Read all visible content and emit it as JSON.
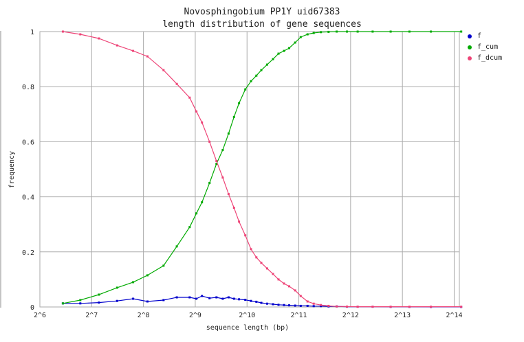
{
  "chart_data": {
    "type": "line",
    "title": "Novosphingobium PP1Y uid67383",
    "subtitle": "length distribution of gene sequences",
    "xlabel": "sequence length (bp)",
    "ylabel": "frequency",
    "x_scale": "log2",
    "xlim_exponent": [
      6,
      14.1
    ],
    "xticks": [
      "2^6",
      "2^7",
      "2^8",
      "2^9",
      "2^10",
      "2^11",
      "2^12",
      "2^13",
      "2^14"
    ],
    "ylim": [
      0,
      1
    ],
    "yticks": [
      "0",
      "0.2",
      "0.4",
      "0.6",
      "0.8",
      "1"
    ],
    "grid": true,
    "legend_position": "right",
    "x": [
      87,
      110,
      141,
      180,
      223,
      270,
      335,
      400,
      475,
      520,
      560,
      620,
      680,
      740,
      800,
      860,
      920,
      1000,
      1080,
      1160,
      1240,
      1340,
      1450,
      1560,
      1680,
      1800,
      1950,
      2100,
      2300,
      2500,
      2750,
      3050,
      3400,
      3900,
      4500,
      5500,
      7000,
      9000,
      12000,
      18000
    ],
    "series": [
      {
        "name": "f",
        "color": "#0000cc",
        "values": [
          0.013,
          0.013,
          0.016,
          0.022,
          0.03,
          0.02,
          0.025,
          0.035,
          0.035,
          0.03,
          0.04,
          0.032,
          0.035,
          0.03,
          0.035,
          0.03,
          0.028,
          0.026,
          0.022,
          0.019,
          0.015,
          0.012,
          0.01,
          0.008,
          0.007,
          0.006,
          0.005,
          0.004,
          0.004,
          0.003,
          0.003,
          0.002,
          0.002,
          0.001,
          0.001,
          0.001,
          0.0005,
          0.0005,
          0.0003,
          0.0003
        ]
      },
      {
        "name": "f_cum",
        "color": "#00aa00",
        "values": [
          0.013,
          0.025,
          0.045,
          0.07,
          0.09,
          0.115,
          0.15,
          0.22,
          0.29,
          0.34,
          0.38,
          0.45,
          0.52,
          0.57,
          0.63,
          0.69,
          0.74,
          0.79,
          0.82,
          0.84,
          0.86,
          0.88,
          0.9,
          0.92,
          0.93,
          0.94,
          0.96,
          0.98,
          0.99,
          0.995,
          0.998,
          0.999,
          1.0,
          1.0,
          1.0,
          1.0,
          1.0,
          1.0,
          1.0,
          1.0
        ]
      },
      {
        "name": "f_dcum",
        "color": "#ee4477",
        "values": [
          1.0,
          0.99,
          0.975,
          0.95,
          0.93,
          0.91,
          0.86,
          0.81,
          0.76,
          0.71,
          0.67,
          0.6,
          0.53,
          0.47,
          0.41,
          0.36,
          0.31,
          0.26,
          0.21,
          0.18,
          0.16,
          0.14,
          0.12,
          0.1,
          0.085,
          0.075,
          0.06,
          0.04,
          0.02,
          0.012,
          0.007,
          0.004,
          0.002,
          0.0015,
          0.001,
          0.001,
          0.001,
          0.001,
          0.001,
          0.001
        ]
      }
    ]
  }
}
